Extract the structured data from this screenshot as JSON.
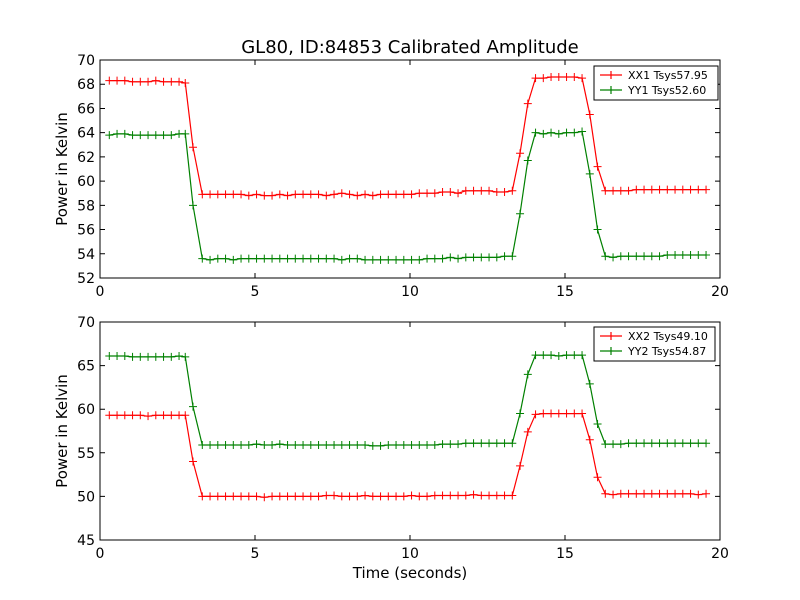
{
  "title": "GL80, ID:84853 Calibrated Amplitude",
  "chart_data": [
    {
      "type": "line",
      "title": "GL80, ID:84853 Calibrated Amplitude",
      "xlabel": "",
      "ylabel": "Power in Kelvin",
      "xlim": [
        0,
        20
      ],
      "ylim": [
        52,
        70
      ],
      "xticks": [
        "0",
        "5",
        "10",
        "15",
        "20"
      ],
      "yticks": [
        "52",
        "54",
        "56",
        "58",
        "60",
        "62",
        "64",
        "66",
        "68",
        "70"
      ],
      "grid": false,
      "legend_position": "top-right",
      "x": [
        0.3,
        0.55,
        0.8,
        1.05,
        1.3,
        1.55,
        1.8,
        2.05,
        2.3,
        2.55,
        2.75,
        3.0,
        3.3,
        3.55,
        3.8,
        4.05,
        4.3,
        4.55,
        4.8,
        5.05,
        5.3,
        5.55,
        5.8,
        6.05,
        6.3,
        6.55,
        6.8,
        7.05,
        7.3,
        7.55,
        7.8,
        8.05,
        8.3,
        8.55,
        8.8,
        9.05,
        9.3,
        9.55,
        9.8,
        10.05,
        10.3,
        10.55,
        10.8,
        11.05,
        11.3,
        11.55,
        11.8,
        12.05,
        12.3,
        12.55,
        12.8,
        13.05,
        13.3,
        13.55,
        13.8,
        14.05,
        14.3,
        14.55,
        14.8,
        15.05,
        15.3,
        15.55,
        15.8,
        16.05,
        16.3,
        16.55,
        16.8,
        17.05,
        17.3,
        17.55,
        17.8,
        18.05,
        18.3,
        18.55,
        18.8,
        19.05,
        19.3,
        19.55
      ],
      "series": [
        {
          "name": "XX1 Tsys57.95",
          "color": "#ff0000",
          "values": [
            68.3,
            68.3,
            68.3,
            68.2,
            68.2,
            68.2,
            68.3,
            68.2,
            68.2,
            68.2,
            68.1,
            62.8,
            58.9,
            58.9,
            58.9,
            58.9,
            58.9,
            58.9,
            58.8,
            58.9,
            58.8,
            58.8,
            58.9,
            58.8,
            58.9,
            58.9,
            58.9,
            58.9,
            58.8,
            58.9,
            59.0,
            58.9,
            58.8,
            58.9,
            58.8,
            58.9,
            58.9,
            58.9,
            58.9,
            58.9,
            59.0,
            59.0,
            59.0,
            59.1,
            59.1,
            59.0,
            59.2,
            59.2,
            59.2,
            59.2,
            59.1,
            59.1,
            59.2,
            62.3,
            66.4,
            68.5,
            68.5,
            68.6,
            68.6,
            68.6,
            68.6,
            68.5,
            65.5,
            61.2,
            59.2,
            59.2,
            59.2,
            59.2,
            59.3,
            59.3,
            59.3,
            59.3,
            59.3,
            59.3,
            59.3,
            59.3,
            59.3,
            59.3
          ]
        },
        {
          "name": "YY1 Tsys52.60",
          "color": "#008000",
          "values": [
            63.8,
            63.9,
            63.9,
            63.8,
            63.8,
            63.8,
            63.8,
            63.8,
            63.8,
            63.9,
            63.9,
            58.0,
            53.6,
            53.5,
            53.6,
            53.6,
            53.5,
            53.6,
            53.6,
            53.6,
            53.6,
            53.6,
            53.6,
            53.6,
            53.6,
            53.6,
            53.6,
            53.6,
            53.6,
            53.6,
            53.5,
            53.6,
            53.6,
            53.5,
            53.5,
            53.5,
            53.5,
            53.5,
            53.5,
            53.5,
            53.5,
            53.6,
            53.6,
            53.6,
            53.7,
            53.6,
            53.7,
            53.7,
            53.7,
            53.7,
            53.7,
            53.8,
            53.8,
            57.3,
            61.7,
            64.0,
            63.9,
            64.0,
            63.9,
            64.0,
            64.0,
            64.1,
            60.6,
            56.0,
            53.8,
            53.7,
            53.8,
            53.8,
            53.8,
            53.8,
            53.8,
            53.8,
            53.9,
            53.9,
            53.9,
            53.9,
            53.9,
            53.9
          ]
        }
      ]
    },
    {
      "type": "line",
      "title": "",
      "xlabel": "Time (seconds)",
      "ylabel": "Power in Kelvin",
      "xlim": [
        0,
        20
      ],
      "ylim": [
        45,
        70
      ],
      "xticks": [
        "0",
        "5",
        "10",
        "15",
        "20"
      ],
      "yticks": [
        "45",
        "50",
        "55",
        "60",
        "65",
        "70"
      ],
      "grid": false,
      "legend_position": "top-right",
      "x": [
        0.3,
        0.55,
        0.8,
        1.05,
        1.3,
        1.55,
        1.8,
        2.05,
        2.3,
        2.55,
        2.75,
        3.0,
        3.3,
        3.55,
        3.8,
        4.05,
        4.3,
        4.55,
        4.8,
        5.05,
        5.3,
        5.55,
        5.8,
        6.05,
        6.3,
        6.55,
        6.8,
        7.05,
        7.3,
        7.55,
        7.8,
        8.05,
        8.3,
        8.55,
        8.8,
        9.05,
        9.3,
        9.55,
        9.8,
        10.05,
        10.3,
        10.55,
        10.8,
        11.05,
        11.3,
        11.55,
        11.8,
        12.05,
        12.3,
        12.55,
        12.8,
        13.05,
        13.3,
        13.55,
        13.8,
        14.05,
        14.3,
        14.55,
        14.8,
        15.05,
        15.3,
        15.55,
        15.8,
        16.05,
        16.3,
        16.55,
        16.8,
        17.05,
        17.3,
        17.55,
        17.8,
        18.05,
        18.3,
        18.55,
        18.8,
        19.05,
        19.3,
        19.55
      ],
      "series": [
        {
          "name": "XX2 Tsys49.10",
          "color": "#ff0000",
          "values": [
            59.3,
            59.3,
            59.3,
            59.3,
            59.3,
            59.2,
            59.3,
            59.3,
            59.3,
            59.3,
            59.3,
            54.0,
            50.0,
            50.0,
            50.0,
            50.0,
            50.0,
            50.0,
            50.0,
            50.0,
            49.9,
            50.0,
            50.0,
            50.0,
            50.0,
            50.0,
            50.0,
            50.0,
            50.1,
            50.1,
            50.0,
            50.0,
            50.0,
            50.1,
            50.0,
            50.0,
            50.0,
            50.0,
            50.0,
            50.1,
            50.0,
            50.0,
            50.1,
            50.1,
            50.1,
            50.1,
            50.1,
            50.2,
            50.1,
            50.1,
            50.1,
            50.1,
            50.1,
            53.5,
            57.4,
            59.4,
            59.5,
            59.5,
            59.5,
            59.5,
            59.5,
            59.5,
            56.5,
            52.2,
            50.3,
            50.2,
            50.3,
            50.3,
            50.3,
            50.3,
            50.3,
            50.3,
            50.3,
            50.3,
            50.3,
            50.3,
            50.2,
            50.3
          ]
        },
        {
          "name": "YY2 Tsys54.87",
          "color": "#008000",
          "values": [
            66.1,
            66.1,
            66.1,
            66.0,
            66.0,
            66.0,
            66.0,
            66.0,
            66.0,
            66.1,
            66.0,
            60.3,
            55.9,
            55.9,
            55.9,
            55.9,
            55.9,
            55.9,
            55.9,
            56.0,
            55.9,
            55.9,
            56.0,
            55.9,
            55.9,
            55.9,
            55.9,
            55.9,
            55.9,
            55.9,
            55.9,
            55.9,
            55.9,
            55.9,
            55.8,
            55.8,
            55.9,
            55.9,
            55.9,
            55.9,
            55.9,
            55.9,
            55.9,
            56.0,
            56.0,
            56.0,
            56.1,
            56.1,
            56.1,
            56.1,
            56.1,
            56.1,
            56.1,
            59.5,
            64.0,
            66.2,
            66.2,
            66.2,
            66.1,
            66.2,
            66.2,
            66.2,
            62.9,
            58.3,
            56.0,
            56.0,
            56.0,
            56.1,
            56.1,
            56.1,
            56.1,
            56.1,
            56.1,
            56.1,
            56.1,
            56.1,
            56.1,
            56.1
          ]
        }
      ]
    }
  ]
}
